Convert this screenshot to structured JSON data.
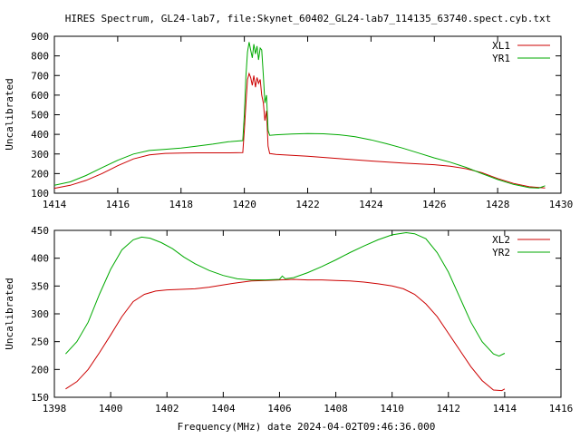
{
  "figure": {
    "title": "HIRES Spectrum, GL24-lab7, file:Skynet_60402_GL24-lab7_114135_63740.spect.cyb.txt",
    "footer": "Frequency(MHz) date 2024-04-02T09:46:36.000"
  },
  "chart_data": [
    {
      "type": "line",
      "ylabel": "Uncalibrated",
      "xlim": [
        1414,
        1430
      ],
      "ylim": [
        100,
        900
      ],
      "xticks": [
        1414,
        1416,
        1418,
        1420,
        1422,
        1424,
        1426,
        1428,
        1430
      ],
      "yticks": [
        100,
        200,
        300,
        400,
        500,
        600,
        700,
        800,
        900
      ],
      "legend_position": "top-right",
      "series": [
        {
          "name": "XL1",
          "color": "#cc0000",
          "points": [
            [
              1414.0,
              125
            ],
            [
              1414.5,
              140
            ],
            [
              1415.0,
              165
            ],
            [
              1415.5,
              200
            ],
            [
              1416.0,
              240
            ],
            [
              1416.5,
              275
            ],
            [
              1417.0,
              295
            ],
            [
              1417.5,
              303
            ],
            [
              1418.0,
              305
            ],
            [
              1418.5,
              306
            ],
            [
              1419.0,
              306
            ],
            [
              1419.5,
              306
            ],
            [
              1419.95,
              307
            ],
            [
              1420.0,
              420
            ],
            [
              1420.05,
              560
            ],
            [
              1420.1,
              680
            ],
            [
              1420.15,
              710
            ],
            [
              1420.2,
              690
            ],
            [
              1420.25,
              650
            ],
            [
              1420.3,
              700
            ],
            [
              1420.35,
              640
            ],
            [
              1420.4,
              690
            ],
            [
              1420.45,
              660
            ],
            [
              1420.5,
              680
            ],
            [
              1420.55,
              600
            ],
            [
              1420.6,
              560
            ],
            [
              1420.65,
              470
            ],
            [
              1420.7,
              520
            ],
            [
              1420.75,
              340
            ],
            [
              1420.8,
              302
            ],
            [
              1421.0,
              298
            ],
            [
              1422.0,
              288
            ],
            [
              1423.0,
              276
            ],
            [
              1424.0,
              264
            ],
            [
              1425.0,
              254
            ],
            [
              1426.0,
              245
            ],
            [
              1426.5,
              238
            ],
            [
              1427.0,
              225
            ],
            [
              1427.5,
              205
            ],
            [
              1428.0,
              175
            ],
            [
              1428.5,
              150
            ],
            [
              1429.0,
              133
            ],
            [
              1429.5,
              127
            ]
          ]
        },
        {
          "name": "YR1",
          "color": "#00aa00",
          "points": [
            [
              1414.0,
              140
            ],
            [
              1414.5,
              158
            ],
            [
              1415.0,
              190
            ],
            [
              1415.5,
              230
            ],
            [
              1416.0,
              268
            ],
            [
              1416.5,
              300
            ],
            [
              1417.0,
              318
            ],
            [
              1417.5,
              324
            ],
            [
              1418.0,
              330
            ],
            [
              1418.5,
              340
            ],
            [
              1419.0,
              350
            ],
            [
              1419.5,
              362
            ],
            [
              1419.95,
              368
            ],
            [
              1420.0,
              500
            ],
            [
              1420.05,
              700
            ],
            [
              1420.1,
              820
            ],
            [
              1420.15,
              870
            ],
            [
              1420.2,
              830
            ],
            [
              1420.25,
              790
            ],
            [
              1420.3,
              860
            ],
            [
              1420.35,
              810
            ],
            [
              1420.4,
              850
            ],
            [
              1420.45,
              780
            ],
            [
              1420.5,
              840
            ],
            [
              1420.55,
              830
            ],
            [
              1420.6,
              700
            ],
            [
              1420.65,
              560
            ],
            [
              1420.7,
              600
            ],
            [
              1420.75,
              420
            ],
            [
              1420.8,
              395
            ],
            [
              1421.0,
              398
            ],
            [
              1421.5,
              402
            ],
            [
              1422.0,
              404
            ],
            [
              1422.5,
              403
            ],
            [
              1423.0,
              398
            ],
            [
              1423.5,
              388
            ],
            [
              1424.0,
              372
            ],
            [
              1424.5,
              352
            ],
            [
              1425.0,
              330
            ],
            [
              1425.5,
              305
            ],
            [
              1426.0,
              280
            ],
            [
              1426.5,
              258
            ],
            [
              1427.0,
              232
            ],
            [
              1427.5,
              200
            ],
            [
              1428.0,
              170
            ],
            [
              1428.5,
              145
            ],
            [
              1429.0,
              128
            ],
            [
              1429.3,
              126
            ],
            [
              1429.5,
              138
            ]
          ]
        }
      ]
    },
    {
      "type": "line",
      "ylabel": "Uncalibrated",
      "xlim": [
        1398,
        1416
      ],
      "ylim": [
        150,
        450
      ],
      "xticks": [
        1398,
        1400,
        1402,
        1404,
        1406,
        1408,
        1410,
        1412,
        1414,
        1416
      ],
      "yticks": [
        150,
        200,
        250,
        300,
        350,
        400,
        450
      ],
      "legend_position": "top-right",
      "series": [
        {
          "name": "XL2",
          "color": "#cc0000",
          "points": [
            [
              1398.4,
              165
            ],
            [
              1398.8,
              178
            ],
            [
              1399.2,
              200
            ],
            [
              1399.6,
              230
            ],
            [
              1400.0,
              262
            ],
            [
              1400.4,
              295
            ],
            [
              1400.8,
              322
            ],
            [
              1401.2,
              335
            ],
            [
              1401.6,
              341
            ],
            [
              1402.0,
              343
            ],
            [
              1402.5,
              344
            ],
            [
              1403.0,
              345
            ],
            [
              1403.5,
              348
            ],
            [
              1404.0,
              352
            ],
            [
              1404.5,
              356
            ],
            [
              1405.0,
              359
            ],
            [
              1405.5,
              360
            ],
            [
              1406.0,
              361
            ],
            [
              1406.5,
              362
            ],
            [
              1407.0,
              361
            ],
            [
              1407.5,
              361
            ],
            [
              1408.0,
              360
            ],
            [
              1408.5,
              359
            ],
            [
              1409.0,
              357
            ],
            [
              1409.5,
              354
            ],
            [
              1410.0,
              350
            ],
            [
              1410.4,
              345
            ],
            [
              1410.8,
              335
            ],
            [
              1411.2,
              318
            ],
            [
              1411.6,
              295
            ],
            [
              1412.0,
              265
            ],
            [
              1412.4,
              235
            ],
            [
              1412.8,
              205
            ],
            [
              1413.2,
              180
            ],
            [
              1413.6,
              163
            ],
            [
              1413.9,
              162
            ],
            [
              1414.0,
              165
            ]
          ]
        },
        {
          "name": "YR2",
          "color": "#00aa00",
          "points": [
            [
              1398.4,
              228
            ],
            [
              1398.8,
              250
            ],
            [
              1399.2,
              285
            ],
            [
              1399.6,
              335
            ],
            [
              1400.0,
              380
            ],
            [
              1400.4,
              415
            ],
            [
              1400.8,
              433
            ],
            [
              1401.1,
              438
            ],
            [
              1401.4,
              436
            ],
            [
              1401.8,
              428
            ],
            [
              1402.2,
              417
            ],
            [
              1402.6,
              402
            ],
            [
              1403.0,
              390
            ],
            [
              1403.5,
              378
            ],
            [
              1404.0,
              369
            ],
            [
              1404.5,
              363
            ],
            [
              1405.0,
              361
            ],
            [
              1405.5,
              361
            ],
            [
              1406.0,
              362
            ],
            [
              1406.1,
              368
            ],
            [
              1406.2,
              363
            ],
            [
              1406.5,
              365
            ],
            [
              1407.0,
              374
            ],
            [
              1407.5,
              385
            ],
            [
              1408.0,
              397
            ],
            [
              1408.5,
              410
            ],
            [
              1409.0,
              422
            ],
            [
              1409.5,
              433
            ],
            [
              1410.0,
              442
            ],
            [
              1410.5,
              446
            ],
            [
              1410.8,
              444
            ],
            [
              1411.2,
              435
            ],
            [
              1411.6,
              410
            ],
            [
              1412.0,
              375
            ],
            [
              1412.4,
              330
            ],
            [
              1412.8,
              285
            ],
            [
              1413.2,
              250
            ],
            [
              1413.6,
              228
            ],
            [
              1413.8,
              224
            ],
            [
              1414.0,
              229
            ]
          ]
        }
      ]
    }
  ]
}
